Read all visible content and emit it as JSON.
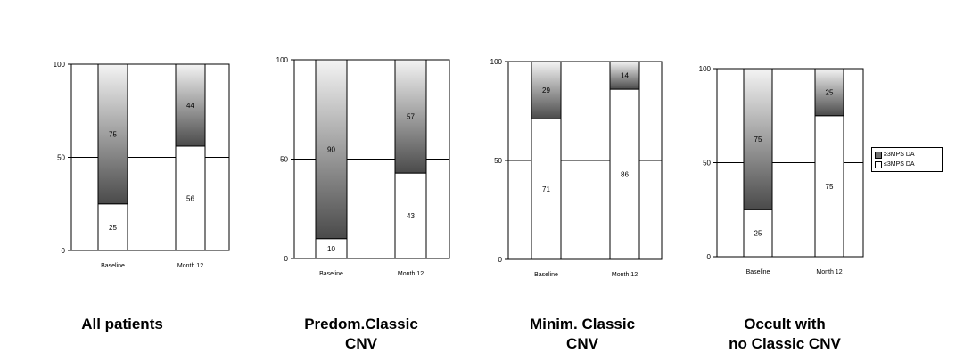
{
  "chart_data": [
    {
      "type": "bar",
      "stacked": true,
      "caption": [
        "All patients"
      ],
      "categories": [
        "Baseline",
        "Month 12"
      ],
      "ylim": [
        0,
        100
      ],
      "yticks": [
        0,
        50,
        100
      ],
      "series": [
        {
          "name": "≤3MPS DA",
          "values": [
            25,
            56
          ]
        },
        {
          "name": "≥3MPS DA",
          "values": [
            75,
            44
          ]
        }
      ]
    },
    {
      "type": "bar",
      "stacked": true,
      "caption": [
        "Predom.Classic",
        "CNV"
      ],
      "categories": [
        "Baseline",
        "Month 12"
      ],
      "ylim": [
        0,
        100
      ],
      "yticks": [
        0,
        50,
        100
      ],
      "series": [
        {
          "name": "≤3MPS DA",
          "values": [
            10,
            43
          ]
        },
        {
          "name": "≥3MPS DA",
          "values": [
            90,
            57
          ]
        }
      ]
    },
    {
      "type": "bar",
      "stacked": true,
      "caption": [
        "Minim. Classic",
        "CNV"
      ],
      "categories": [
        "Baseline",
        "Month 12"
      ],
      "ylim": [
        0,
        100
      ],
      "yticks": [
        0,
        50,
        100
      ],
      "series": [
        {
          "name": "≤3MPS DA",
          "values": [
            71,
            86
          ]
        },
        {
          "name": "≥3MPS DA",
          "values": [
            29,
            14
          ]
        }
      ]
    },
    {
      "type": "bar",
      "stacked": true,
      "caption": [
        "Occult with",
        "no Classic CNV"
      ],
      "categories": [
        "Baseline",
        "Month 12"
      ],
      "ylim": [
        0,
        100
      ],
      "yticks": [
        0,
        50,
        100
      ],
      "series": [
        {
          "name": "≤3MPS DA",
          "values": [
            25,
            75
          ]
        },
        {
          "name": "≥3MPS DA",
          "values": [
            75,
            25
          ]
        }
      ]
    }
  ],
  "legend": {
    "entries": [
      {
        "label": "≥3MPS DA",
        "color": "#707070"
      },
      {
        "label": "≤3MPS DA",
        "color": "#ffffff"
      }
    ]
  },
  "colors": {
    "lower": "#ffffff",
    "upper_top": "#f4f4f4",
    "upper_bottom": "#4a4a4a"
  }
}
